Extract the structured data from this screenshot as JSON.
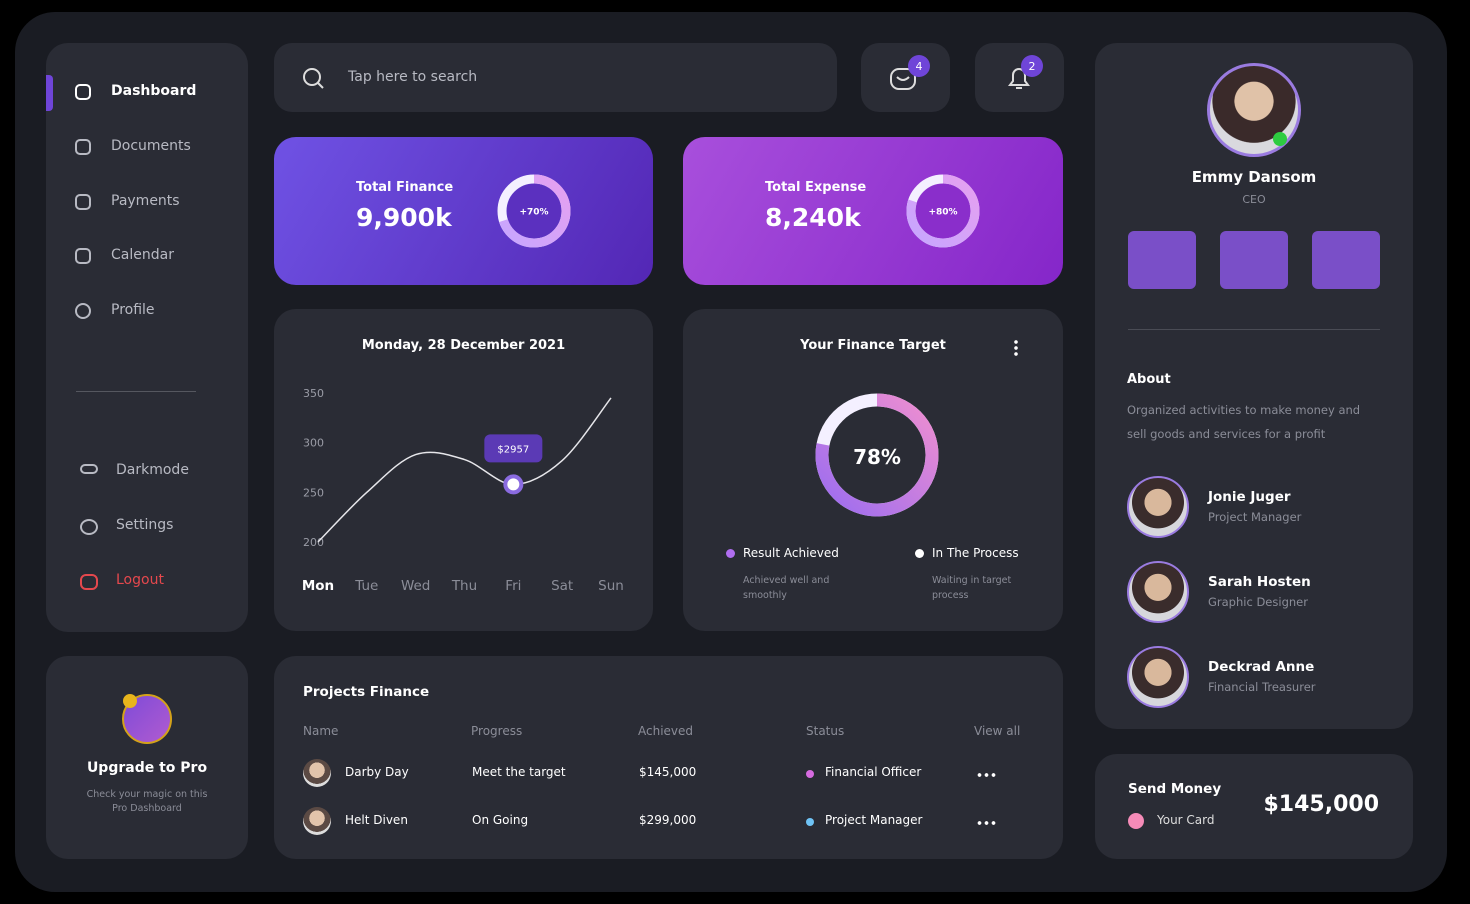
{
  "sidebar": {
    "nav": [
      "Dashboard",
      "Documents",
      "Payments",
      "Calendar",
      "Profile"
    ],
    "settings": [
      "Darkmode",
      "Settings",
      "Logout"
    ]
  },
  "upgrade": {
    "title": "Upgrade to Pro",
    "text": "Check your magic on this Pro Dashboard"
  },
  "search": {
    "placeholder": "Tap here to search"
  },
  "badges": {
    "messages": 4,
    "notifications": 2
  },
  "finance_cards": [
    {
      "title": "Total Finance",
      "amount": "9,900k",
      "change": {
        "value": 70,
        "label": "+70%"
      }
    },
    {
      "title": "Total Expense",
      "amount": "8,240k",
      "change": {
        "value": 80,
        "label": "+80%"
      }
    }
  ],
  "finance_chart": {
    "type": "line",
    "title": "Monday, 28 December 2021",
    "categories": [
      "Mon",
      "Tue",
      "Wed",
      "Thu",
      "Fri",
      "Sat",
      "Sun"
    ],
    "values": [
      200,
      250,
      288,
      283,
      258,
      282,
      345
    ],
    "ylim": [
      200,
      350
    ],
    "yticks": [
      200,
      250,
      300,
      350
    ],
    "tooltip": "$2957"
  },
  "target": {
    "title": "Your Finance Target",
    "percent": {
      "value": 78,
      "label": "78%"
    },
    "legend": [
      {
        "name": "Result Achieved",
        "text": "Achieved well and smoothly",
        "color": "#b06ef0"
      },
      {
        "name": "In The Process",
        "text": "Waiting in target process",
        "color": "#ffffff"
      }
    ]
  },
  "projects": {
    "title": "Projects Finance",
    "columns": [
      "Name",
      "Progress",
      "Achieved",
      "Status"
    ],
    "view_all": "View all",
    "rows": [
      [
        "Darby Day",
        "Meet the target",
        "$145,000",
        "Financial Officer"
      ],
      [
        "Helt Diven",
        "On Going",
        "$299,000",
        "Project Manager"
      ]
    ],
    "status_colors": [
      "#d66be0",
      "#6fc3f5"
    ]
  },
  "profile": {
    "name": "Emmy Dansom",
    "role": "CEO",
    "about_title": "About",
    "about": "Organized activities to make money and sell goods and services for a profit",
    "team": [
      {
        "name": "Jonie Juger",
        "role": "Project Manager"
      },
      {
        "name": "Sarah Hosten",
        "role": "Graphic Designer"
      },
      {
        "name": "Deckrad Anne",
        "role": "Financial Treasurer"
      }
    ]
  },
  "send_money": {
    "title": "Send Money",
    "card": "Your Card",
    "amount": "$145,000"
  }
}
